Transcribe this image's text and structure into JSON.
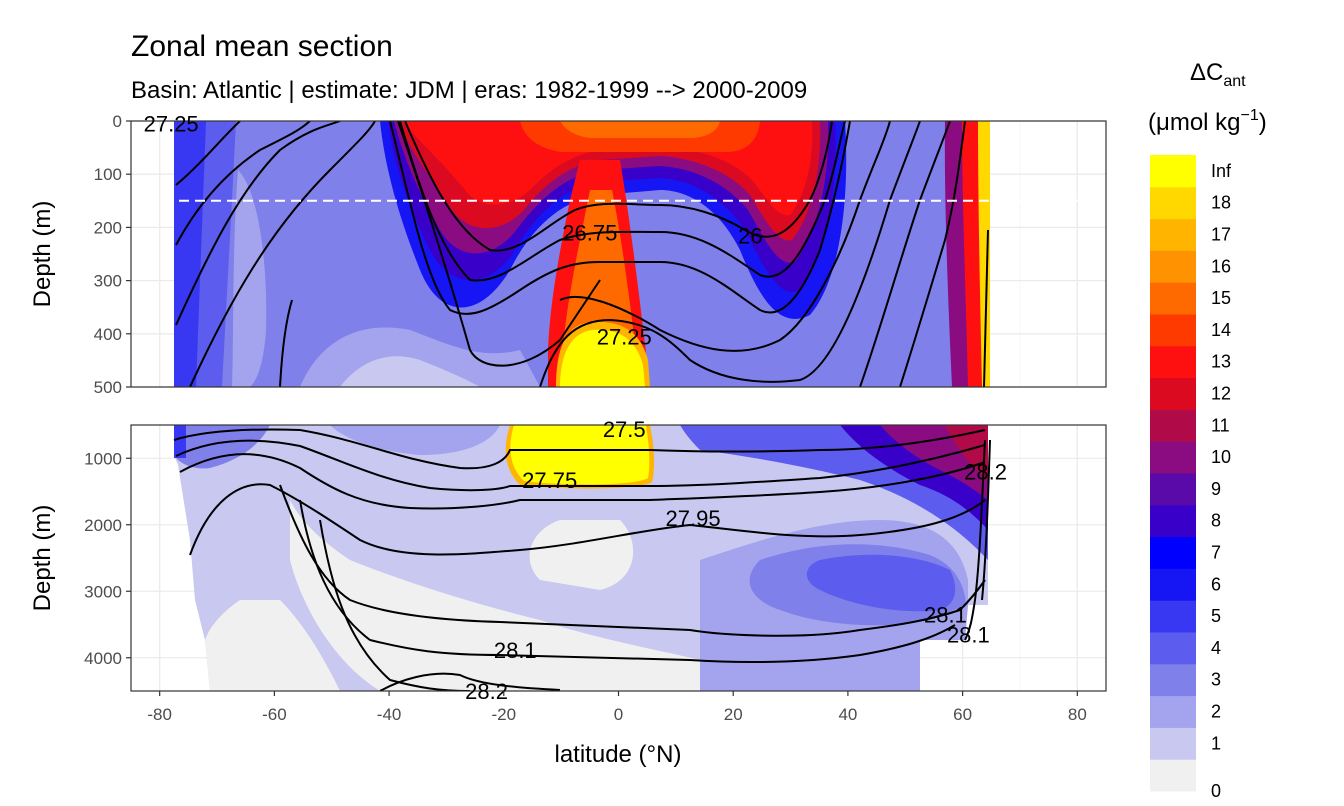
{
  "chart_data": {
    "type": "contour",
    "title": "Zonal mean section",
    "subtitle": "Basin: Atlantic | estimate: JDM  | eras: 1982-1999 --> 2000-2009",
    "xlabel": "latitude (°N)",
    "ylabel": "Depth (m)",
    "xlim": [
      -85,
      85
    ],
    "x_ticks": [
      -80,
      -60,
      -40,
      -20,
      0,
      20,
      40,
      60,
      80
    ],
    "panels": [
      {
        "name": "upper",
        "ylim": [
          0,
          500
        ],
        "y_ticks": [
          0,
          100,
          200,
          300,
          400,
          500
        ],
        "reference_line_depth": 150
      },
      {
        "name": "lower",
        "ylim": [
          500,
          4500
        ],
        "y_ticks": [
          1000,
          2000,
          3000,
          4000
        ]
      }
    ],
    "legend": {
      "title_main": "ΔC",
      "title_sub": "ant",
      "unit_text": "(μmol kg",
      "unit_exp": "−1",
      "unit_close": ")",
      "placement": "right",
      "breaks": [
        "0",
        "1",
        "2",
        "3",
        "4",
        "5",
        "6",
        "7",
        "8",
        "9",
        "10",
        "11",
        "12",
        "13",
        "14",
        "15",
        "16",
        "17",
        "18",
        "Inf"
      ],
      "colors": [
        "#f0f0f0",
        "#c8c8f0",
        "#a4a4ee",
        "#8080ea",
        "#5c5cee",
        "#3838f2",
        "#1616f4",
        "#0000ff",
        "#3800c8",
        "#5a0aa8",
        "#8a0c80",
        "#b00a48",
        "#dc0a20",
        "#ff1010",
        "#ff3a00",
        "#ff6a00",
        "#ff9200",
        "#ffb400",
        "#ffd800",
        "#ffff00"
      ]
    },
    "contour_labels": [
      {
        "text": "27.25",
        "lat": -78,
        "depth": 5
      },
      {
        "text": "26.75",
        "lat": -5,
        "depth": 210
      },
      {
        "text": "26",
        "lat": 23,
        "depth": 215
      },
      {
        "text": "27.25",
        "lat": 1,
        "depth": 405
      },
      {
        "text": "27.5",
        "lat": 1,
        "depth": 560
      },
      {
        "text": "27.75",
        "lat": -12,
        "depth": 1330
      },
      {
        "text": "27.95",
        "lat": 13,
        "depth": 1900
      },
      {
        "text": "28.1",
        "lat": -18,
        "depth": 3880
      },
      {
        "text": "28.2",
        "lat": -23,
        "depth": 4500
      },
      {
        "text": "28.1",
        "lat": 57,
        "depth": 3350
      },
      {
        "text": "28.1",
        "lat": 61,
        "depth": 3650
      },
      {
        "text": "28.2",
        "lat": 64,
        "depth": 1200
      }
    ]
  }
}
